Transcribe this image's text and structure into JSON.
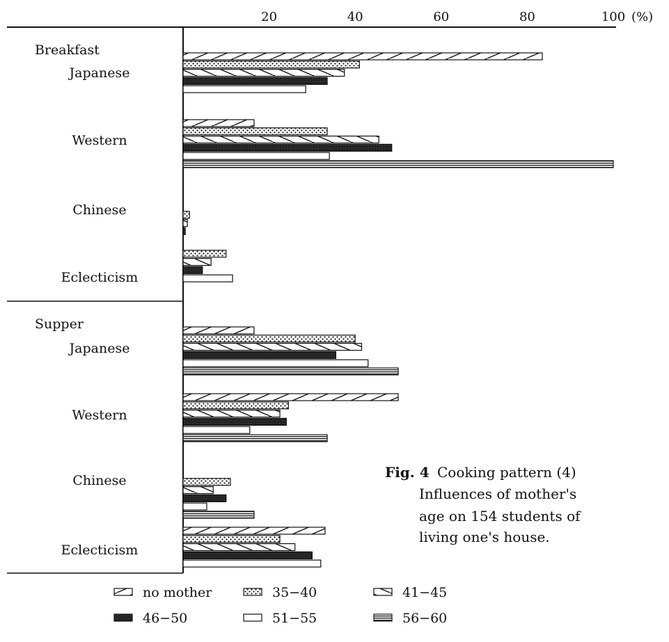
{
  "chart_data": {
    "type": "bar",
    "orientation": "horizontal",
    "caption": {
      "label": "Fig. 4",
      "lines": [
        "Cooking pattern (4)",
        "Influences of  mother's",
        "age on 154 students  of",
        "living one's house."
      ]
    },
    "x_ticks": [
      "20",
      "40",
      "60",
      "80",
      "100"
    ],
    "x_unit": "(%)",
    "xlim": [
      0,
      100
    ],
    "grid": false,
    "legend_position": "bottom",
    "legend_labels": [
      "no  mother",
      "35−40",
      "41−45",
      "46−50",
      "51−55",
      "56−60"
    ],
    "groups": [
      {
        "name": "Breakfast",
        "categories": [
          {
            "name": "Japanese",
            "values": [
              83.5,
              41,
              37.5,
              33.5,
              28.5,
              0
            ]
          },
          {
            "name": "Western",
            "values": [
              16.5,
              33.5,
              45.5,
              48.5,
              34,
              100
            ]
          },
          {
            "name": "Chinese",
            "values": [
              0,
              1.5,
              1,
              0.5,
              0,
              0
            ]
          },
          {
            "name": "Eclecticism",
            "values": [
              0,
              10,
              6.5,
              4.5,
              11.5,
              0
            ]
          }
        ]
      },
      {
        "name": "Supper",
        "categories": [
          {
            "name": "Japanese",
            "values": [
              16.5,
              40,
              41.5,
              35.5,
              43,
              50
            ]
          },
          {
            "name": "Western",
            "values": [
              50,
              24.5,
              22.5,
              24,
              15.5,
              33.5
            ]
          },
          {
            "name": "Chinese",
            "values": [
              0,
              11,
              7,
              10,
              5.5,
              16.5
            ]
          },
          {
            "name": "Eclecticism",
            "values": [
              33,
              22.5,
              26,
              30,
              32,
              0
            ]
          }
        ]
      }
    ]
  }
}
